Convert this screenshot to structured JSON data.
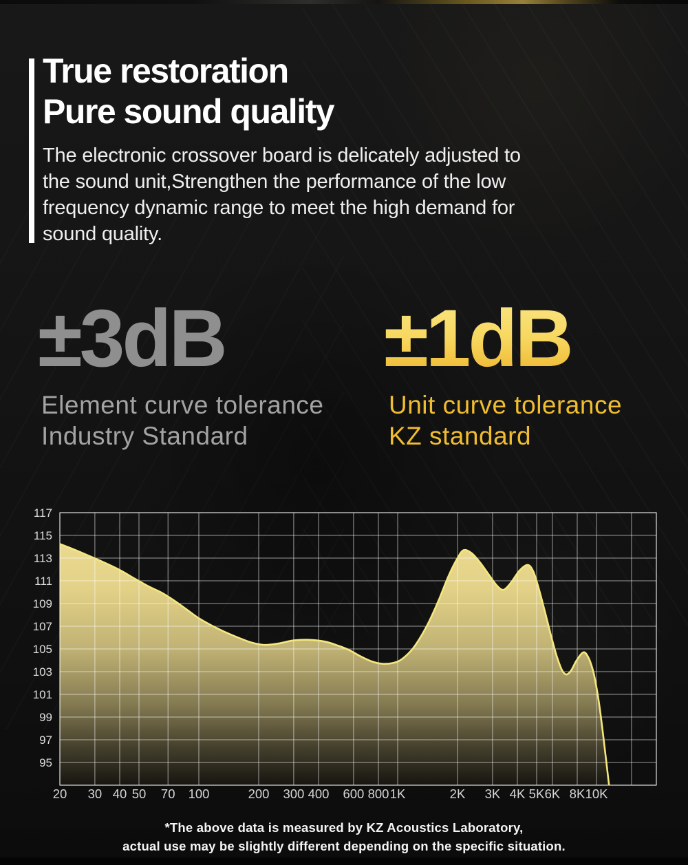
{
  "header": {
    "title_lines": [
      "True restoration",
      "Pure sound quality"
    ],
    "body_lines": [
      "The electronic crossover board is delicately adjusted to",
      "the sound unit,Strengthen the performance of the low",
      "frequency dynamic range to meet the high demand for",
      "sound quality."
    ]
  },
  "stats": {
    "industry": {
      "value": "±3dB",
      "label_lines": [
        "Element curve tolerance",
        "Industry Standard"
      ],
      "value_color": "#8f8f8f",
      "label_color": "#a3a3a3"
    },
    "kz": {
      "value": "±1dB",
      "label_lines": [
        "Unit curve tolerance",
        "KZ standard"
      ],
      "value_gradient": [
        "#fae684",
        "#f7d75f",
        "#eeb32c"
      ],
      "label_color": "#f0bc30"
    }
  },
  "chart_data": {
    "type": "area",
    "title": "",
    "xlabel": "",
    "ylabel": "",
    "series_name": "frequency-response-dB",
    "x_scale": "log",
    "x_range": [
      20,
      20000
    ],
    "y_axis_top": 117,
    "y_axis_bottom": 93,
    "y_grid_step": 2,
    "y_ticks": [
      117,
      115,
      113,
      111,
      109,
      107,
      105,
      103,
      101,
      99,
      97,
      95
    ],
    "x_ticks": [
      {
        "label": "20",
        "f": 20
      },
      {
        "label": "30",
        "f": 30
      },
      {
        "label": "40",
        "f": 40
      },
      {
        "label": "50",
        "f": 50
      },
      {
        "label": "70",
        "f": 70
      },
      {
        "label": "100",
        "f": 100
      },
      {
        "label": "200",
        "f": 200
      },
      {
        "label": "300",
        "f": 300
      },
      {
        "label": "400",
        "f": 400
      },
      {
        "label": "600",
        "f": 600
      },
      {
        "label": "800",
        "f": 800
      },
      {
        "label": "1K",
        "f": 1000
      },
      {
        "label": "2K",
        "f": 2000
      },
      {
        "label": "3K",
        "f": 3000
      },
      {
        "label": "4K",
        "f": 4000
      },
      {
        "label": "5K",
        "f": 5000
      },
      {
        "label": "6K",
        "f": 6000
      },
      {
        "label": "8K",
        "f": 8000
      },
      {
        "label": "10K",
        "f": 10000
      }
    ],
    "unlabeled_grid_freqs": [
      15000,
      20000
    ],
    "points": [
      [
        20,
        114.25
      ],
      [
        24,
        113.7
      ],
      [
        28,
        113.2
      ],
      [
        33,
        112.65
      ],
      [
        40,
        111.95
      ],
      [
        48,
        111.15
      ],
      [
        56,
        110.5
      ],
      [
        65,
        109.95
      ],
      [
        76,
        109.2
      ],
      [
        88,
        108.4
      ],
      [
        100,
        107.7
      ],
      [
        115,
        107.1
      ],
      [
        135,
        106.5
      ],
      [
        160,
        105.95
      ],
      [
        185,
        105.55
      ],
      [
        215,
        105.35
      ],
      [
        255,
        105.5
      ],
      [
        300,
        105.75
      ],
      [
        360,
        105.8
      ],
      [
        430,
        105.65
      ],
      [
        500,
        105.3
      ],
      [
        570,
        104.9
      ],
      [
        650,
        104.35
      ],
      [
        740,
        103.9
      ],
      [
        830,
        103.7
      ],
      [
        940,
        103.75
      ],
      [
        1050,
        104.1
      ],
      [
        1200,
        105.1
      ],
      [
        1400,
        107.0
      ],
      [
        1600,
        109.2
      ],
      [
        1800,
        111.4
      ],
      [
        2000,
        113.0
      ],
      [
        2150,
        113.7
      ],
      [
        2350,
        113.45
      ],
      [
        2600,
        112.6
      ],
      [
        2900,
        111.45
      ],
      [
        3150,
        110.6
      ],
      [
        3400,
        110.2
      ],
      [
        3700,
        110.8
      ],
      [
        4100,
        111.9
      ],
      [
        4500,
        112.4
      ],
      [
        4800,
        111.85
      ],
      [
        5100,
        110.45
      ],
      [
        5500,
        108.3
      ],
      [
        5900,
        106.2
      ],
      [
        6300,
        104.4
      ],
      [
        6700,
        103.15
      ],
      [
        7050,
        102.75
      ],
      [
        7450,
        103.1
      ],
      [
        7950,
        104.0
      ],
      [
        8600,
        104.7
      ],
      [
        9100,
        104.25
      ],
      [
        9600,
        103.1
      ],
      [
        10000,
        101.6
      ],
      [
        10400,
        99.7
      ],
      [
        10800,
        97.4
      ],
      [
        11200,
        95.1
      ],
      [
        11600,
        92.8
      ],
      [
        11900,
        91.5
      ]
    ],
    "style": {
      "grid_color": "#ffffff",
      "grid_opacity": 0.58,
      "border_opacity": 0.75,
      "curve_color": "#f4e77e",
      "ylabel_color": "#dedede",
      "xlabel_color": "#d6d6d6",
      "fill_stops": [
        [
          0,
          "#f0e096"
        ],
        [
          0.28,
          "#e2d187"
        ],
        [
          0.5,
          "#c0b274"
        ],
        [
          0.7,
          "#857b52"
        ],
        [
          0.86,
          "#45402d"
        ],
        [
          1,
          "#171510"
        ]
      ]
    }
  },
  "footer": {
    "lines": [
      "*The above data is measured by KZ Acoustics Laboratory,",
      "actual use may be slightly different depending on the specific situation."
    ]
  }
}
